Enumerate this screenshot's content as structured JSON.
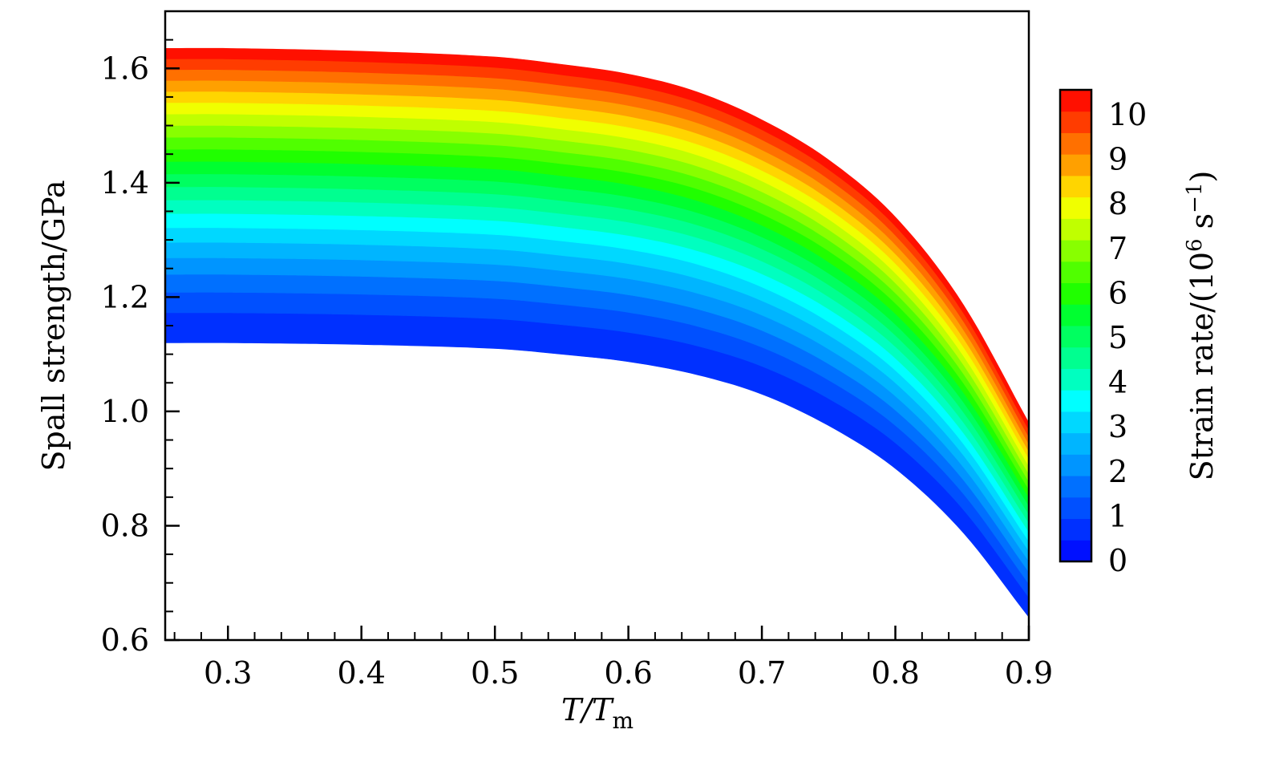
{
  "chart_data": {
    "type": "heatmap",
    "subtype": "filled-contour",
    "title": "",
    "xlabel": "T/Tm",
    "xlabel_main": "T/T",
    "xlabel_sub": "m",
    "ylabel": "Spall strength/GPa",
    "xlim": [
      0.253,
      0.9
    ],
    "ylim": [
      0.6,
      1.7
    ],
    "x_ticks": [
      0.3,
      0.4,
      0.5,
      0.6,
      0.7,
      0.8,
      0.9
    ],
    "x_tick_labels": [
      "0.3",
      "0.4",
      "0.5",
      "0.6",
      "0.7",
      "0.8",
      "0.9"
    ],
    "y_ticks": [
      0.6,
      0.8,
      1.0,
      1.2,
      1.4,
      1.6
    ],
    "y_tick_labels": [
      "0.6",
      "0.8",
      "1.0",
      "1.2",
      "1.4",
      "1.6"
    ],
    "x_minor_step": 0.02,
    "y_minor_step": 0.05,
    "grid": false,
    "curve_T": [
      0.253,
      0.3,
      0.4,
      0.5,
      0.55,
      0.6,
      0.65,
      0.7,
      0.75,
      0.8,
      0.85,
      0.9
    ],
    "strength_at_min_rate": [
      1.12,
      1.12,
      1.117,
      1.11,
      1.1,
      1.087,
      1.065,
      1.03,
      0.975,
      0.9,
      0.79,
      0.64
    ],
    "strength_at_max_rate": [
      1.635,
      1.635,
      1.63,
      1.62,
      1.607,
      1.59,
      1.56,
      1.51,
      1.44,
      1.34,
      1.19,
      0.98
    ],
    "rate_exponent": 0.75,
    "colorbar": {
      "label": "Strain rate/(10⁶ s⁻¹)",
      "label_main": "Strain rate/(10",
      "label_sup": "6",
      "label_unit": " s",
      "label_unit_sup": "−1",
      "label_close": ")",
      "range": [
        0,
        10.5
      ],
      "level_step": 0.5,
      "ticks": [
        0,
        1,
        2,
        3,
        4,
        5,
        6,
        7,
        8,
        9,
        10
      ],
      "tick_labels": [
        "0",
        "1",
        "2",
        "3",
        "4",
        "5",
        "6",
        "7",
        "8",
        "9",
        "10"
      ],
      "colors": [
        "#0010ff",
        "#0030ff",
        "#0050ff",
        "#0070ff",
        "#0095ff",
        "#00b5ff",
        "#00d8ff",
        "#00ffff",
        "#00ffc0",
        "#00ff90",
        "#00ff60",
        "#00ff30",
        "#20ff00",
        "#50ff00",
        "#88ff00",
        "#c0ff00",
        "#f0ff00",
        "#ffd500",
        "#ffa000",
        "#ff7000",
        "#ff3c00",
        "#ff1000"
      ]
    }
  }
}
